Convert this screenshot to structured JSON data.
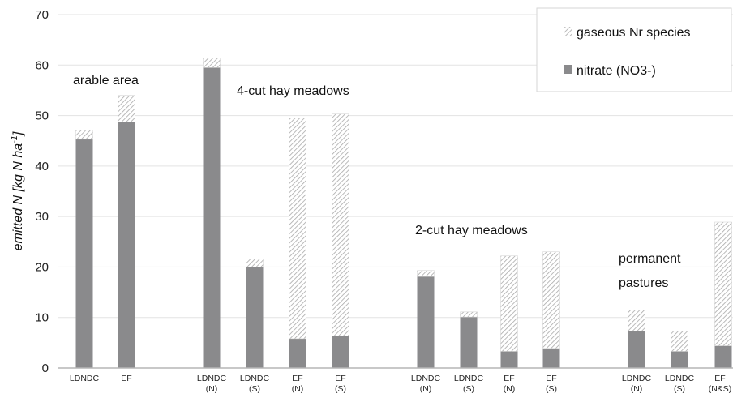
{
  "chart_data": {
    "type": "bar",
    "stacked": true,
    "ylabel": "emitted N [kg N ha-1]",
    "ylabel_main": "emitted N [kg N ha",
    "ylabel_sup": "-1",
    "ylabel_end": "]",
    "ylim": [
      0,
      70
    ],
    "yticks": [
      0,
      10,
      20,
      30,
      40,
      50,
      60,
      70
    ],
    "grid": true,
    "legend_position": "top-right",
    "categories": [
      [
        "LDNDC"
      ],
      [
        "EF"
      ],
      [
        "LDNDC",
        "(N)"
      ],
      [
        "LDNDC",
        "(S)"
      ],
      [
        "EF",
        "(N)"
      ],
      [
        "EF",
        "(S)"
      ],
      [
        "LDNDC",
        "(N)"
      ],
      [
        "LDNDC",
        "(S)"
      ],
      [
        "EF",
        "(N)"
      ],
      [
        "EF",
        "(S)"
      ],
      [
        "LDNDC",
        "(N)"
      ],
      [
        "LDNDC",
        "(S)"
      ],
      [
        "EF",
        "(N&S)"
      ]
    ],
    "series": [
      {
        "name": "nitrate (NO3-)",
        "color": "#8a8a8c",
        "values": [
          45.3,
          48.7,
          59.5,
          20.0,
          5.8,
          6.3,
          18.1,
          10.1,
          3.3,
          3.9,
          7.3,
          3.3,
          4.4
        ]
      },
      {
        "name": "gaseous Nr species",
        "color": "#bdbdbd",
        "pattern": "diagonal-hatch",
        "values": [
          1.8,
          5.3,
          1.9,
          1.6,
          43.7,
          44.0,
          1.2,
          1.0,
          18.9,
          19.1,
          4.2,
          4.0,
          24.5
        ]
      }
    ],
    "annotations": [
      "arable area",
      "4-cut hay meadows",
      "2-cut hay meadows",
      "permanent",
      "pastures"
    ]
  }
}
